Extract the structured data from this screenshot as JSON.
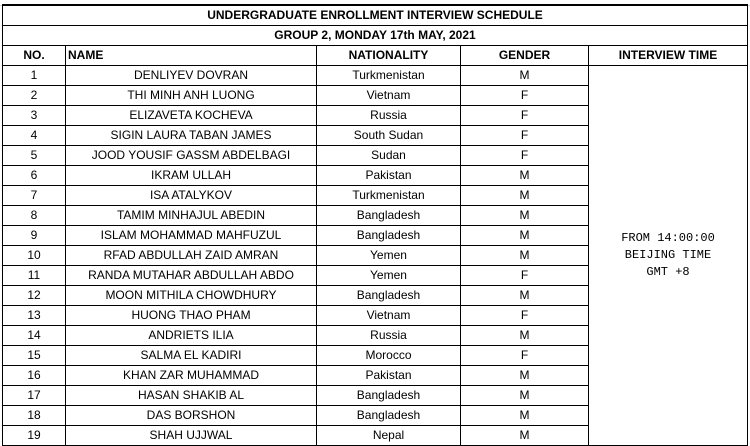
{
  "title": "UNDERGRADUATE ENROLLMENT INTERVIEW SCHEDULE",
  "subtitle": "GROUP 2, MONDAY 17th MAY, 2021",
  "headers": {
    "no": "NO.",
    "name": "NAME",
    "nationality": "NATIONALITY",
    "gender": "GENDER",
    "time": "INTERVIEW TIME"
  },
  "interview_time": [
    "FROM 14:00:00",
    "BEIJING TIME",
    "GMT +8"
  ],
  "rows": [
    [
      "1",
      "DENLIYEV DOVRAN",
      "Turkmenistan",
      "M"
    ],
    [
      "2",
      "THI MINH ANH LUONG",
      "Vietnam",
      "F"
    ],
    [
      "3",
      "ELIZAVETA KOCHEVA",
      "Russia",
      "F"
    ],
    [
      "4",
      "SIGIN LAURA TABAN JAMES",
      "South Sudan",
      "F"
    ],
    [
      "5",
      "JOOD YOUSIF GASSM ABDELBAGI",
      "Sudan",
      "F"
    ],
    [
      "6",
      "IKRAM ULLAH",
      "Pakistan",
      "M"
    ],
    [
      "7",
      "ISA ATALYKOV",
      "Turkmenistan",
      "M"
    ],
    [
      "8",
      "TAMIM MINHAJUL ABEDIN",
      "Bangladesh",
      "M"
    ],
    [
      "9",
      "ISLAM MOHAMMAD MAHFUZUL",
      "Bangladesh",
      "M"
    ],
    [
      "10",
      "RFAD ABDULLAH ZAID AMRAN",
      "Yemen",
      "M"
    ],
    [
      "11",
      "RANDA MUTAHAR ABDULLAH ABDO",
      "Yemen",
      "F"
    ],
    [
      "12",
      "MOON MITHILA CHOWDHURY",
      "Bangladesh",
      "M"
    ],
    [
      "13",
      "HUONG THAO PHAM",
      "Vietnam",
      "F"
    ],
    [
      "14",
      "ANDRIETS ILIA",
      "Russia",
      "M"
    ],
    [
      "15",
      "SALMA EL KADIRI",
      "Morocco",
      "F"
    ],
    [
      "16",
      "KHAN ZAR MUHAMMAD",
      "Pakistan",
      "M"
    ],
    [
      "17",
      "HASAN SHAKIB AL",
      "Bangladesh",
      "M"
    ],
    [
      "18",
      "DAS BORSHON",
      "Bangladesh",
      "M"
    ],
    [
      "19",
      "SHAH UJJWAL",
      "Nepal",
      "M"
    ]
  ]
}
